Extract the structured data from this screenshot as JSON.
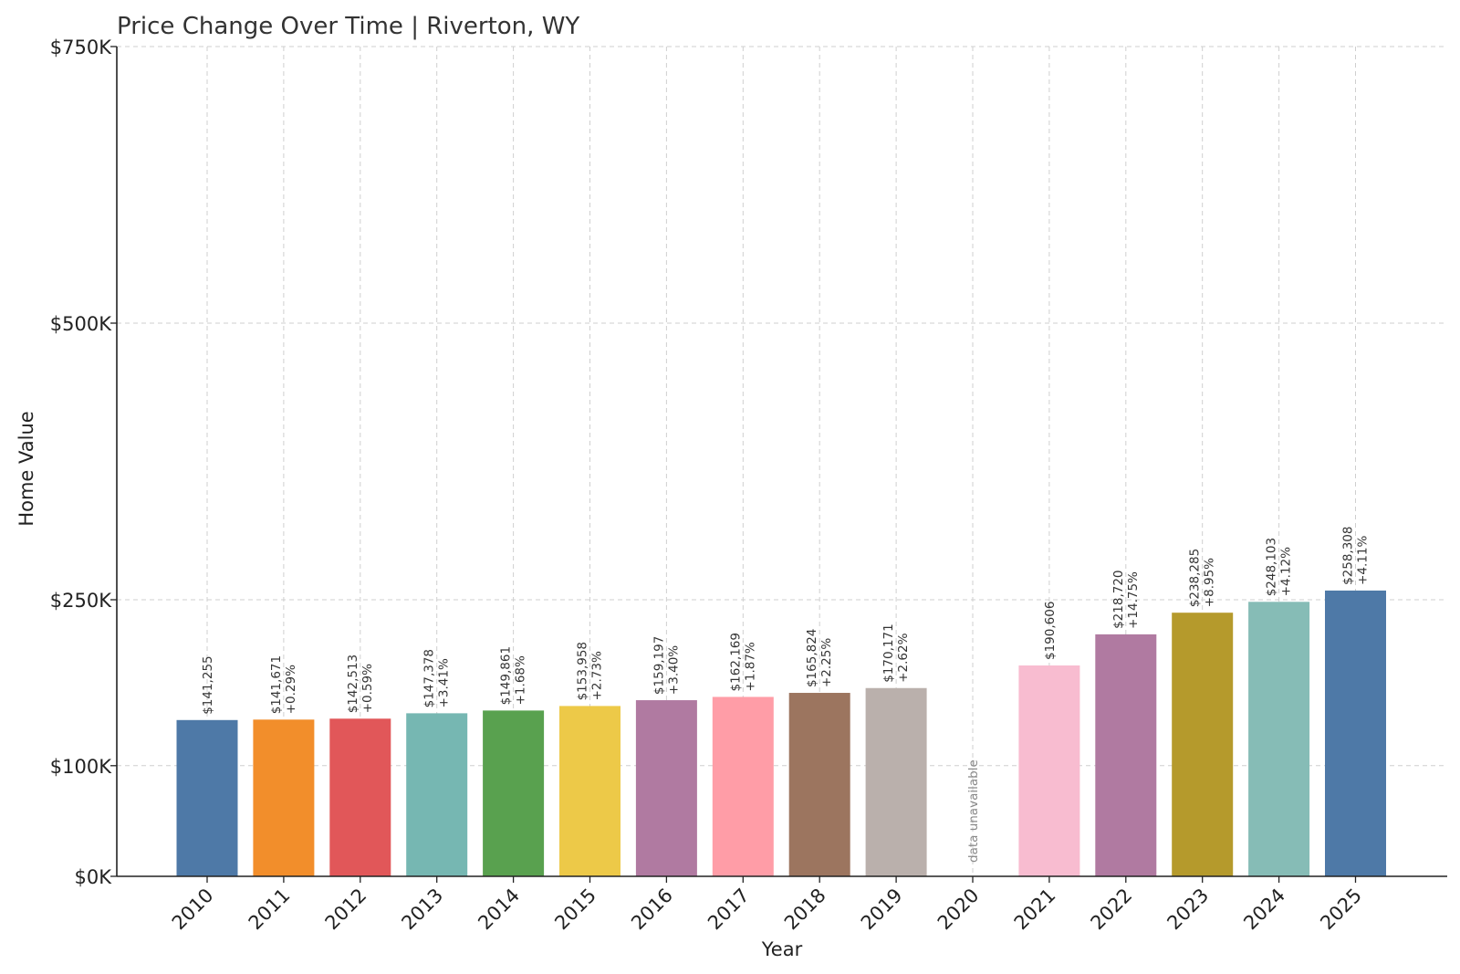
{
  "chart_data": {
    "type": "bar",
    "title": "Price Change Over Time | Riverton, WY",
    "xlabel": "Year",
    "ylabel": "Home Value",
    "ylim": [
      0,
      750000
    ],
    "yticks": [
      {
        "value": 0,
        "label": "$0K"
      },
      {
        "value": 100000,
        "label": "$100K"
      },
      {
        "value": 250000,
        "label": "$250K"
      },
      {
        "value": 500000,
        "label": "$500K"
      },
      {
        "value": 750000,
        "label": "$750K"
      }
    ],
    "grid": true,
    "categories": [
      "2010",
      "2011",
      "2012",
      "2013",
      "2014",
      "2015",
      "2016",
      "2017",
      "2018",
      "2019",
      "2020",
      "2021",
      "2022",
      "2023",
      "2024",
      "2025"
    ],
    "values": [
      141255,
      141671,
      142513,
      147378,
      149861,
      153958,
      159197,
      162169,
      165824,
      170171,
      null,
      190606,
      218720,
      238285,
      248103,
      258308
    ],
    "value_labels": [
      "$141,255",
      "$141,671",
      "$142,513",
      "$147,378",
      "$149,861",
      "$153,958",
      "$159,197",
      "$162,169",
      "$165,824",
      "$170,171",
      "",
      "$190,606",
      "$218,720",
      "$238,285",
      "$248,103",
      "$258,308"
    ],
    "change_labels": [
      "",
      "+0.29%",
      "+0.59%",
      "+3.41%",
      "+1.68%",
      "+2.73%",
      "+3.40%",
      "+1.87%",
      "+2.25%",
      "+2.62%",
      "",
      "",
      "+14.75%",
      "+8.95%",
      "+4.12%",
      "+4.11%"
    ],
    "missing_label": "data unavailable",
    "colors": [
      "#4e79a7",
      "#f28e2b",
      "#e15759",
      "#76b7b2",
      "#59a14f",
      "#edc948",
      "#b07aa1",
      "#ff9da7",
      "#9c755f",
      "#bab0ac",
      "#cccccc",
      "#f8bcd0",
      "#b07aa1",
      "#b59a2c",
      "#86bcb6",
      "#4e79a7"
    ]
  }
}
